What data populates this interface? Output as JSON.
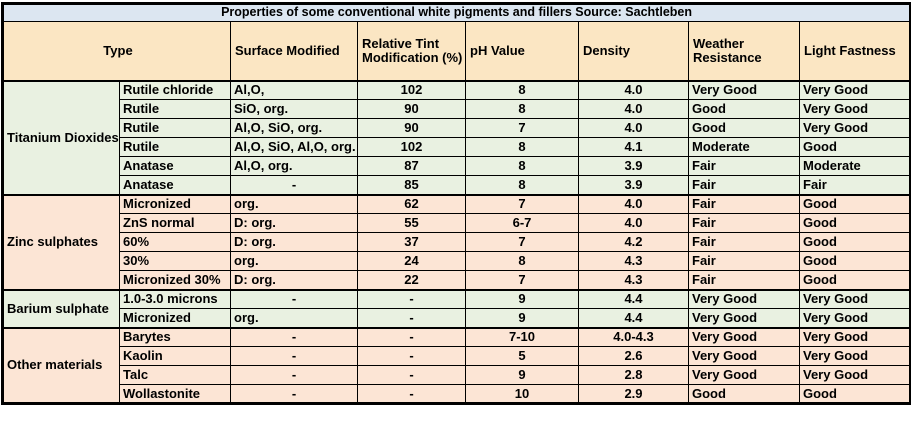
{
  "title": "Properties of some conventional white pigments and fillers Source: Sachtleben",
  "colors": {
    "title_bg": "#DCE6F1",
    "header_bg": "#FBE6C3",
    "green_row_bg": "#E9F1E1",
    "pink_row_bg": "#FCE5D5",
    "border": "#000000"
  },
  "columns": [
    "Type",
    "Surface Modified",
    "Relative Tint Modification (%)",
    "pH Value",
    "Density",
    "Weather Resistance",
    "Light Fastness"
  ],
  "groups": [
    {
      "name": "Titanium Dioxides",
      "tone": "green",
      "rows": [
        [
          "Rutile chloride",
          "Al,O,",
          "102",
          "8",
          "4.0",
          "Very Good",
          "Very Good"
        ],
        [
          "Rutile",
          "SiO, org.",
          "90",
          "8",
          "4.0",
          "Good",
          "Very Good"
        ],
        [
          "Rutile",
          "Al,O, SiO, org.",
          "90",
          "7",
          "4.0",
          "Good",
          "Very Good"
        ],
        [
          "Rutile",
          "Al,O, SiO, Al,O, org.",
          "102",
          "8",
          "4.1",
          "Moderate",
          "Good"
        ],
        [
          "Anatase",
          "Al,O, org.",
          "87",
          "8",
          "3.9",
          "Fair",
          "Moderate"
        ],
        [
          "Anatase",
          "-",
          "85",
          "8",
          "3.9",
          "Fair",
          "Fair"
        ]
      ]
    },
    {
      "name": "Zinc sulphates",
      "tone": "pink",
      "rows": [
        [
          "Micronized",
          "org.",
          "62",
          "7",
          "4.0",
          "Fair",
          "Good"
        ],
        [
          "ZnS normal",
          "D: org.",
          "55",
          "6-7",
          "4.0",
          "Fair",
          "Good"
        ],
        [
          "60%",
          "D: org.",
          "37",
          "7",
          "4.2",
          "Fair",
          "Good"
        ],
        [
          "30%",
          "org.",
          "24",
          "8",
          "4.3",
          "Fair",
          "Good"
        ],
        [
          "Micronized 30%",
          "D: org.",
          "22",
          "7",
          "4.3",
          "Fair",
          "Good"
        ]
      ]
    },
    {
      "name": "Barium sulphate",
      "tone": "green",
      "rows": [
        [
          "1.0-3.0 microns",
          "-",
          "-",
          "9",
          "4.4",
          "Very Good",
          "Very Good"
        ],
        [
          "Micronized",
          "org.",
          "-",
          "9",
          "4.4",
          "Very Good",
          "Very Good"
        ]
      ]
    },
    {
      "name": "Other materials",
      "tone": "pink",
      "rows": [
        [
          "Barytes",
          "-",
          "-",
          "7-10",
          "4.0-4.3",
          "Very Good",
          "Very Good"
        ],
        [
          "Kaolin",
          "-",
          "-",
          "5",
          "2.6",
          "Very Good",
          "Very Good"
        ],
        [
          "Talc",
          "-",
          "-",
          "9",
          "2.8",
          "Very Good",
          "Very Good"
        ],
        [
          "Wollastonite",
          "-",
          "-",
          "10",
          "2.9",
          "Good",
          "Good"
        ]
      ]
    }
  ]
}
